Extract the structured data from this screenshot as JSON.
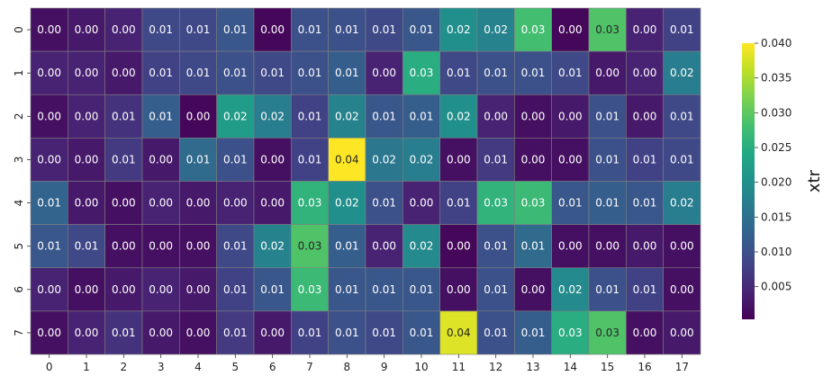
{
  "chart_data": {
    "type": "heatmap",
    "title": "",
    "xlabel": "",
    "ylabel": "",
    "x_categories": [
      "0",
      "1",
      "2",
      "3",
      "4",
      "5",
      "6",
      "7",
      "8",
      "9",
      "10",
      "11",
      "12",
      "13",
      "14",
      "15",
      "16",
      "17"
    ],
    "y_categories": [
      "0",
      "1",
      "2",
      "3",
      "4",
      "5",
      "6",
      "7"
    ],
    "values": [
      [
        0.002,
        0.003,
        0.004,
        0.009,
        0.009,
        0.011,
        0.001,
        0.01,
        0.01,
        0.009,
        0.011,
        0.02,
        0.018,
        0.028,
        0.001,
        0.029,
        0.004,
        0.008
      ],
      [
        0.004,
        0.004,
        0.003,
        0.008,
        0.009,
        0.01,
        0.009,
        0.01,
        0.012,
        0.004,
        0.025,
        0.009,
        0.01,
        0.01,
        0.009,
        0.003,
        0.004,
        0.017
      ],
      [
        0.002,
        0.004,
        0.006,
        0.012,
        0.001,
        0.022,
        0.017,
        0.008,
        0.018,
        0.011,
        0.012,
        0.02,
        0.004,
        0.002,
        0.003,
        0.01,
        0.003,
        0.009
      ],
      [
        0.004,
        0.003,
        0.007,
        0.003,
        0.014,
        0.01,
        0.002,
        0.008,
        0.04,
        0.016,
        0.017,
        0.002,
        0.007,
        0.002,
        0.002,
        0.01,
        0.008,
        0.009
      ],
      [
        0.013,
        0.003,
        0.002,
        0.004,
        0.003,
        0.004,
        0.003,
        0.026,
        0.02,
        0.01,
        0.004,
        0.008,
        0.026,
        0.027,
        0.011,
        0.012,
        0.011,
        0.017
      ],
      [
        0.011,
        0.009,
        0.002,
        0.002,
        0.002,
        0.009,
        0.018,
        0.029,
        0.012,
        0.004,
        0.019,
        0.001,
        0.01,
        0.014,
        0.002,
        0.002,
        0.003,
        0.002
      ],
      [
        0.004,
        0.002,
        0.003,
        0.004,
        0.003,
        0.008,
        0.011,
        0.027,
        0.011,
        0.011,
        0.011,
        0.002,
        0.01,
        0.002,
        0.019,
        0.01,
        0.008,
        0.002
      ],
      [
        0.002,
        0.004,
        0.006,
        0.003,
        0.002,
        0.007,
        0.003,
        0.008,
        0.01,
        0.009,
        0.011,
        0.038,
        0.01,
        0.012,
        0.025,
        0.029,
        0.002,
        0.003
      ]
    ],
    "value_labels": [
      [
        "0.00",
        "0.00",
        "0.00",
        "0.01",
        "0.01",
        "0.01",
        "0.00",
        "0.01",
        "0.01",
        "0.01",
        "0.01",
        "0.02",
        "0.02",
        "0.03",
        "0.00",
        "0.03",
        "0.00",
        "0.01"
      ],
      [
        "0.00",
        "0.00",
        "0.00",
        "0.01",
        "0.01",
        "0.01",
        "0.01",
        "0.01",
        "0.01",
        "0.00",
        "0.03",
        "0.01",
        "0.01",
        "0.01",
        "0.01",
        "0.00",
        "0.00",
        "0.02"
      ],
      [
        "0.00",
        "0.00",
        "0.01",
        "0.01",
        "0.00",
        "0.02",
        "0.02",
        "0.01",
        "0.02",
        "0.01",
        "0.01",
        "0.02",
        "0.00",
        "0.00",
        "0.00",
        "0.01",
        "0.00",
        "0.01"
      ],
      [
        "0.00",
        "0.00",
        "0.01",
        "0.00",
        "0.01",
        "0.01",
        "0.00",
        "0.01",
        "0.04",
        "0.02",
        "0.02",
        "0.00",
        "0.01",
        "0.00",
        "0.00",
        "0.01",
        "0.01",
        "0.01"
      ],
      [
        "0.01",
        "0.00",
        "0.00",
        "0.00",
        "0.00",
        "0.00",
        "0.00",
        "0.03",
        "0.02",
        "0.01",
        "0.00",
        "0.01",
        "0.03",
        "0.03",
        "0.01",
        "0.01",
        "0.01",
        "0.02"
      ],
      [
        "0.01",
        "0.01",
        "0.00",
        "0.00",
        "0.00",
        "0.01",
        "0.02",
        "0.03",
        "0.01",
        "0.00",
        "0.02",
        "0.00",
        "0.01",
        "0.01",
        "0.00",
        "0.00",
        "0.00",
        "0.00"
      ],
      [
        "0.00",
        "0.00",
        "0.00",
        "0.00",
        "0.00",
        "0.01",
        "0.01",
        "0.03",
        "0.01",
        "0.01",
        "0.01",
        "0.00",
        "0.01",
        "0.00",
        "0.02",
        "0.01",
        "0.01",
        "0.00"
      ],
      [
        "0.00",
        "0.00",
        "0.01",
        "0.00",
        "0.00",
        "0.01",
        "0.00",
        "0.01",
        "0.01",
        "0.01",
        "0.01",
        "0.04",
        "0.01",
        "0.01",
        "0.03",
        "0.03",
        "0.00",
        "0.00"
      ]
    ],
    "colormap": "viridis",
    "vmin": 0.0003,
    "vmax": 0.04,
    "colorbar": {
      "label": "xtr",
      "ticks": [
        0.005,
        0.01,
        0.015,
        0.02,
        0.025,
        0.03,
        0.035,
        0.04
      ],
      "tick_labels": [
        "0.005",
        "0.010",
        "0.015",
        "0.020",
        "0.025",
        "0.030",
        "0.035",
        "0.040"
      ]
    },
    "cell_border_color": "#808080",
    "grid": false,
    "legend": "colorbar-right"
  }
}
